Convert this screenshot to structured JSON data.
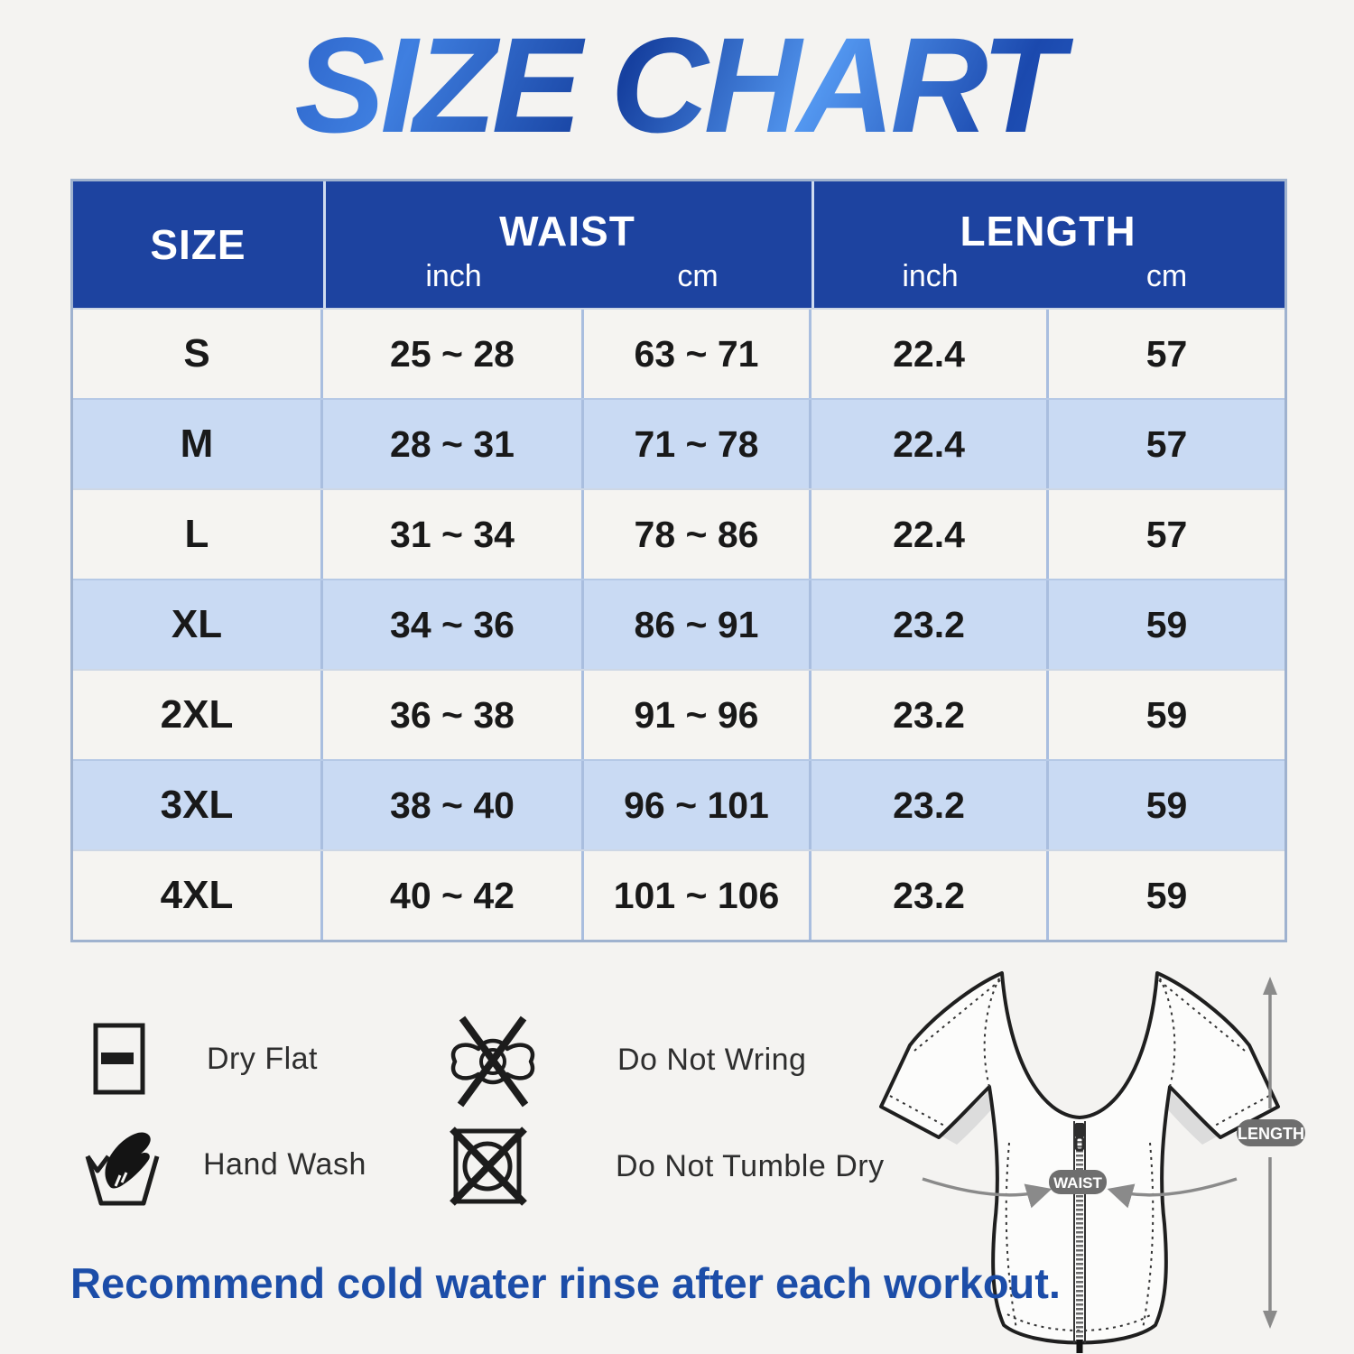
{
  "title": {
    "text": "SIZE CHART"
  },
  "table": {
    "header": {
      "size": "SIZE",
      "waist": "WAIST",
      "length": "LENGTH",
      "unit_inch": "inch",
      "unit_cm": "cm"
    }
  },
  "chart_data": {
    "type": "table",
    "title": "SIZE CHART",
    "columns": [
      "SIZE",
      "WAIST inch",
      "WAIST cm",
      "LENGTH inch",
      "LENGTH cm"
    ],
    "rows": [
      [
        "S",
        "25 ~ 28",
        "63 ~ 71",
        "22.4",
        "57"
      ],
      [
        "M",
        "28 ~ 31",
        "71 ~ 78",
        "22.4",
        "57"
      ],
      [
        "L",
        "31 ~ 34",
        "78 ~ 86",
        "22.4",
        "57"
      ],
      [
        "XL",
        "34 ~ 36",
        "86 ~ 91",
        "23.2",
        "59"
      ],
      [
        "2XL",
        "36 ~ 38",
        "91 ~ 96",
        "23.2",
        "59"
      ],
      [
        "3XL",
        "38 ~ 40",
        "96 ~ 101",
        "23.2",
        "59"
      ],
      [
        "4XL",
        "40 ~ 42",
        "101 ~ 106",
        "23.2",
        "59"
      ]
    ]
  },
  "care": {
    "items": [
      {
        "icon": "dry-flat-icon",
        "label": "Dry Flat"
      },
      {
        "icon": "do-not-wring-icon",
        "label": "Do Not Wring"
      },
      {
        "icon": "hand-wash-icon",
        "label": "Hand Wash"
      },
      {
        "icon": "do-not-tumble-dry-icon",
        "label": "Do Not Tumble Dry"
      }
    ]
  },
  "garment": {
    "waist_badge": "WAIST",
    "length_badge": "LENGTH"
  },
  "footer": {
    "text": "Recommend cold water rinse after each workout."
  },
  "colors": {
    "page_bg": "#f4f3f1",
    "header_bg": "#1d43a0",
    "row_light": "#f5f4f1",
    "row_blue": "#c9daf3",
    "table_border": "#a9bedf",
    "title_blue": "#1d4cb0",
    "footer_blue": "#1c4da8",
    "badge_gray": "#6e6e6e",
    "icon_black": "#1c1c1c"
  }
}
